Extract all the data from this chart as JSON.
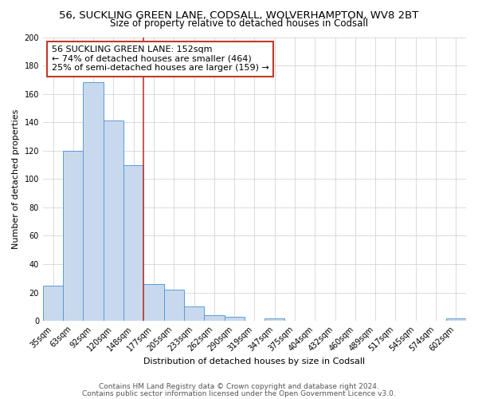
{
  "title": "56, SUCKLING GREEN LANE, CODSALL, WOLVERHAMPTON, WV8 2BT",
  "subtitle": "Size of property relative to detached houses in Codsall",
  "xlabel": "Distribution of detached houses by size in Codsall",
  "ylabel": "Number of detached properties",
  "categories": [
    "35sqm",
    "63sqm",
    "92sqm",
    "120sqm",
    "148sqm",
    "177sqm",
    "205sqm",
    "233sqm",
    "262sqm",
    "290sqm",
    "319sqm",
    "347sqm",
    "375sqm",
    "404sqm",
    "432sqm",
    "460sqm",
    "489sqm",
    "517sqm",
    "545sqm",
    "574sqm",
    "602sqm"
  ],
  "values": [
    25,
    120,
    168,
    141,
    110,
    26,
    22,
    10,
    4,
    3,
    0,
    2,
    0,
    0,
    0,
    0,
    0,
    0,
    0,
    0,
    2
  ],
  "bar_color": "#c8d9ee",
  "bar_edge_color": "#5b9bd5",
  "vline_x": 4.5,
  "vline_color": "#c0392b",
  "annotation_line1": "56 SUCKLING GREEN LANE: 152sqm",
  "annotation_line2": "← 74% of detached houses are smaller (464)",
  "annotation_line3": "25% of semi-detached houses are larger (159) →",
  "annotation_box_color": "white",
  "annotation_box_edge_color": "#c0392b",
  "ylim": [
    0,
    200
  ],
  "yticks": [
    0,
    20,
    40,
    60,
    80,
    100,
    120,
    140,
    160,
    180,
    200
  ],
  "footer1": "Contains HM Land Registry data © Crown copyright and database right 2024.",
  "footer2": "Contains public sector information licensed under the Open Government Licence v3.0.",
  "background_color": "#ffffff",
  "grid_color": "#cccccc",
  "title_fontsize": 9.5,
  "subtitle_fontsize": 8.5,
  "axis_label_fontsize": 8,
  "tick_fontsize": 7,
  "footer_fontsize": 6.5,
  "annotation_fontsize": 8
}
